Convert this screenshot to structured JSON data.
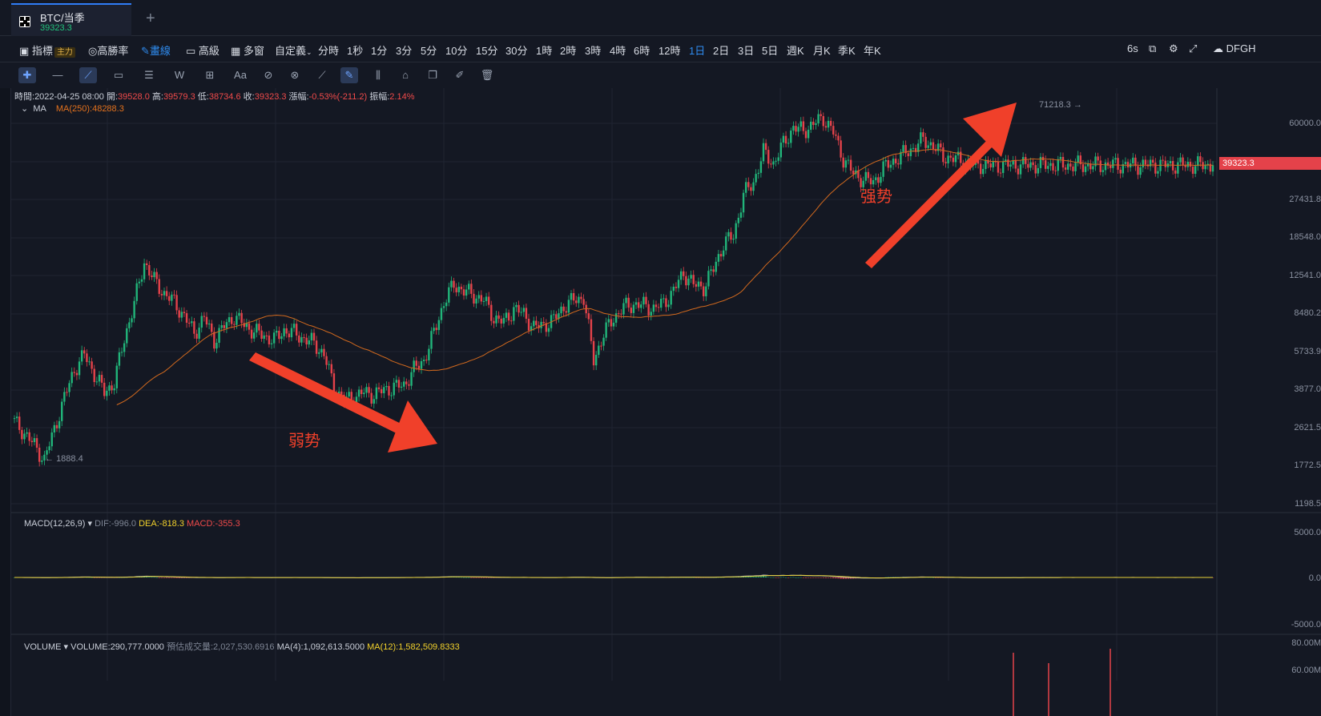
{
  "tab": {
    "title": "BTC/当季",
    "price": "39323.3",
    "add": "+"
  },
  "toolbar": {
    "indicators": "指標",
    "main_badge": "主力",
    "high_win": "高勝率",
    "draw": "畫線",
    "advanced": "高級",
    "multi": "多窗",
    "custom": "自定義",
    "intervals": [
      "分時",
      "1秒",
      "1分",
      "3分",
      "5分",
      "10分",
      "15分",
      "30分",
      "1時",
      "2時",
      "3時",
      "4時",
      "6時",
      "12時",
      "1日",
      "2日",
      "3日",
      "5日",
      "週K",
      "月K",
      "季K",
      "年K"
    ],
    "active_interval": "1日",
    "right": {
      "refresh": "6s",
      "account": "DFGH"
    }
  },
  "draw_tools": [
    "crosshair",
    "horizontal-line",
    "trend-line",
    "rectangle",
    "parallel-lines",
    "wave",
    "measure",
    "text",
    "fib",
    "pattern",
    "ruler",
    "brush",
    "bars",
    "lock",
    "copy",
    "edit",
    "delete"
  ],
  "ohlc": {
    "time_label": "時間:",
    "time": "2022-04-25 08:00",
    "open_label": "開:",
    "open": "39528.0",
    "high_label": "高:",
    "high": "39579.3",
    "low_label": "低:",
    "low": "38734.6",
    "close_label": "收:",
    "close": "39323.3",
    "change_label": "漲幅:",
    "change": "-0.53%(-211.2)",
    "amp_label": "振幅:",
    "amp": "2.14%"
  },
  "ma": {
    "label": "MA",
    "value": "MA(250):48288.3"
  },
  "macd": {
    "label": "MACD(12,26,9)",
    "dif": "DIF:-996.0",
    "dea": "DEA:-818.3",
    "macd": "MACD:-355.3"
  },
  "volume": {
    "label": "VOLUME",
    "vol": "VOLUME:290,777.0000",
    "est": "預估成交量:2,027,530.6916",
    "ma4": "MA(4):1,092,613.5000",
    "ma12": "MA(12):1,582,509.8333"
  },
  "price_axis": [
    "60000.0",
    "27431.8",
    "18548.0",
    "12541.0",
    "8480.2",
    "5733.9",
    "3877.0",
    "2621.5",
    "1772.5",
    "1198.5"
  ],
  "current_price_tag": "39323.3",
  "macd_axis": [
    "5000.0",
    "0.0",
    "-5000.0"
  ],
  "volume_axis": [
    "80.00M",
    "60.00M"
  ],
  "high_mark": "71218.3",
  "low_mark": "1888.4",
  "annotations": {
    "weak": "弱势",
    "strong": "强势"
  },
  "chart_data": {
    "type": "candlestick",
    "title": "BTC/当季",
    "scale": "log",
    "ylim": [
      1198.5,
      80000
    ],
    "x": [
      0,
      1,
      2,
      3,
      4,
      5,
      6,
      7,
      8,
      9,
      10,
      11,
      12,
      13,
      14,
      15,
      16,
      17,
      18,
      19,
      20,
      21,
      22,
      23,
      24,
      25,
      26,
      27,
      28,
      29,
      30,
      31,
      32,
      33,
      34,
      35,
      36,
      37,
      38,
      39,
      40,
      41,
      42,
      43,
      44,
      45,
      46,
      47,
      48,
      49,
      50,
      51,
      52,
      53,
      54,
      55,
      56,
      57,
      58,
      59,
      60,
      61,
      62,
      63,
      64,
      65,
      66,
      67,
      68,
      69,
      70,
      71,
      72,
      73,
      74,
      75,
      76,
      77,
      78,
      79,
      80,
      81,
      82,
      83,
      84,
      85,
      86,
      87,
      88,
      89,
      90,
      91,
      92,
      93,
      94,
      95,
      96,
      97,
      98,
      99,
      100,
      101,
      102,
      103,
      104,
      105,
      106,
      107,
      108,
      109,
      110,
      111,
      112,
      113,
      114,
      115,
      116,
      117,
      118,
      119,
      120
    ],
    "close": [
      2800,
      2500,
      2200,
      1900,
      2600,
      3600,
      4800,
      5600,
      4600,
      3800,
      4200,
      6600,
      9500,
      14500,
      12000,
      10500,
      9600,
      8300,
      7000,
      8200,
      6500,
      7500,
      8300,
      7600,
      7100,
      6800,
      6500,
      7200,
      7000,
      6600,
      6300,
      5600,
      4000,
      3500,
      3600,
      3800,
      3700,
      3900,
      4000,
      4100,
      4800,
      5300,
      7000,
      9600,
      11500,
      10800,
      10300,
      9800,
      8200,
      7800,
      9000,
      8500,
      7400,
      7600,
      8000,
      9200,
      9800,
      10100,
      5300,
      6900,
      8200,
      9100,
      9400,
      9300,
      9000,
      9500,
      10800,
      13000,
      11500,
      11200,
      13500,
      17500,
      19000,
      29000,
      33000,
      45000,
      40000,
      49000,
      58000,
      56000,
      60000,
      64000,
      55000,
      42000,
      36000,
      34000,
      33000,
      38000,
      41000,
      44000,
      47000,
      51000,
      48000,
      43000,
      42000,
      41000,
      39323,
      39500,
      39000,
      39323,
      39323,
      39323,
      39323,
      39323,
      39323,
      39323,
      39323,
      39323,
      39323,
      39323,
      39323,
      39323,
      39323,
      39323,
      39323,
      39323,
      39323,
      39323,
      39323,
      39323,
      39323
    ],
    "ma250_current": 48288.3,
    "macd_range": [
      -5000,
      5000
    ]
  }
}
